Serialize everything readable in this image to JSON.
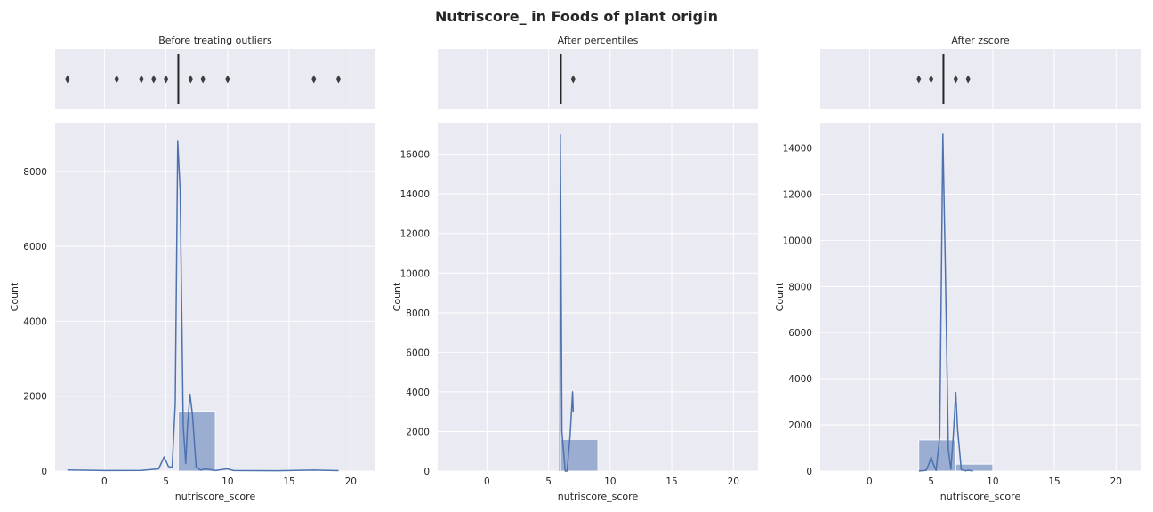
{
  "figure": {
    "title": "Nutriscore_ in Foods of plant origin"
  },
  "colors": {
    "axes_bg": "#eaeaf2",
    "grid": "#ffffff",
    "series": "#4c72b0",
    "bar_fill": "#4c72b0",
    "median": "#262626",
    "flier": "#3d3d3d"
  },
  "chart_data": [
    {
      "type": "histogram",
      "title": "Before treating outliers",
      "xlabel": "nutriscore_score",
      "ylabel": "Count",
      "xlim": [
        -4,
        22
      ],
      "ylim": [
        0,
        9300
      ],
      "xticks": [
        0,
        5,
        10,
        15,
        20
      ],
      "yticks": [
        0,
        2000,
        4000,
        6000,
        8000
      ],
      "ytick_labels": [
        "0",
        "2000",
        "4000",
        "6000",
        "8000"
      ],
      "bars": [
        {
          "x0": 6,
          "x1": 9,
          "count": 1600
        }
      ],
      "kde": [
        [
          -3,
          30
        ],
        [
          0,
          15
        ],
        [
          3,
          20
        ],
        [
          4.4,
          60
        ],
        [
          4.85,
          380
        ],
        [
          5.2,
          120
        ],
        [
          5.5,
          100
        ],
        [
          5.75,
          1800
        ],
        [
          5.95,
          8800
        ],
        [
          6.15,
          7500
        ],
        [
          6.4,
          1200
        ],
        [
          6.6,
          200
        ],
        [
          6.75,
          1200
        ],
        [
          6.95,
          2050
        ],
        [
          7.15,
          1500
        ],
        [
          7.45,
          100
        ],
        [
          7.8,
          25
        ],
        [
          8.2,
          60
        ],
        [
          9,
          15
        ],
        [
          9.95,
          60
        ],
        [
          10.5,
          15
        ],
        [
          14,
          10
        ],
        [
          17,
          25
        ],
        [
          19,
          12
        ]
      ],
      "box": {
        "median": 6,
        "fliers": [
          -3,
          1,
          3,
          4,
          5,
          7,
          8,
          10,
          17,
          19
        ]
      }
    },
    {
      "type": "histogram",
      "title": "After percentiles",
      "xlabel": "nutriscore_score",
      "ylabel": "Count",
      "xlim": [
        -4,
        22
      ],
      "ylim": [
        0,
        17600
      ],
      "xticks": [
        0,
        5,
        10,
        15,
        20
      ],
      "yticks": [
        0,
        2000,
        4000,
        6000,
        8000,
        10000,
        12000,
        14000,
        16000
      ],
      "ytick_labels": [
        "0",
        "2000",
        "4000",
        "6000",
        "8000",
        "10000",
        "12000",
        "14000",
        "16000"
      ],
      "bars": [
        {
          "x0": 6,
          "x1": 9,
          "count": 1600
        }
      ],
      "kde": [
        [
          5.92,
          0
        ],
        [
          5.95,
          17000
        ],
        [
          6.0,
          12000
        ],
        [
          6.08,
          2000
        ],
        [
          6.35,
          0
        ],
        [
          6.5,
          0
        ],
        [
          6.75,
          1800
        ],
        [
          6.95,
          4000
        ],
        [
          7.0,
          3000
        ]
      ],
      "box": {
        "median": 6,
        "fliers": [
          7
        ]
      }
    },
    {
      "type": "histogram",
      "title": "After zscore",
      "xlabel": "nutriscore_score",
      "ylabel": "Count",
      "xlim": [
        -4,
        22
      ],
      "ylim": [
        0,
        15100
      ],
      "xticks": [
        0,
        5,
        10,
        15,
        20
      ],
      "yticks": [
        0,
        2000,
        4000,
        6000,
        8000,
        10000,
        12000,
        14000
      ],
      "ytick_labels": [
        "0",
        "2000",
        "4000",
        "6000",
        "8000",
        "10000",
        "12000",
        "14000"
      ],
      "bars": [
        {
          "x0": 4,
          "x1": 7,
          "count": 1350
        },
        {
          "x0": 7,
          "x1": 10,
          "count": 300
        }
      ],
      "kde": [
        [
          4,
          5
        ],
        [
          4.6,
          30
        ],
        [
          4.85,
          350
        ],
        [
          5.0,
          600
        ],
        [
          5.15,
          350
        ],
        [
          5.4,
          30
        ],
        [
          5.7,
          1500
        ],
        [
          5.95,
          14600
        ],
        [
          6.15,
          9000
        ],
        [
          6.4,
          900
        ],
        [
          6.6,
          80
        ],
        [
          6.8,
          1500
        ],
        [
          7.0,
          3400
        ],
        [
          7.15,
          1800
        ],
        [
          7.45,
          60
        ],
        [
          7.8,
          10
        ],
        [
          8.0,
          40
        ],
        [
          8.4,
          5
        ]
      ],
      "box": {
        "median": 6,
        "fliers": [
          4,
          5,
          7,
          8
        ]
      }
    }
  ]
}
